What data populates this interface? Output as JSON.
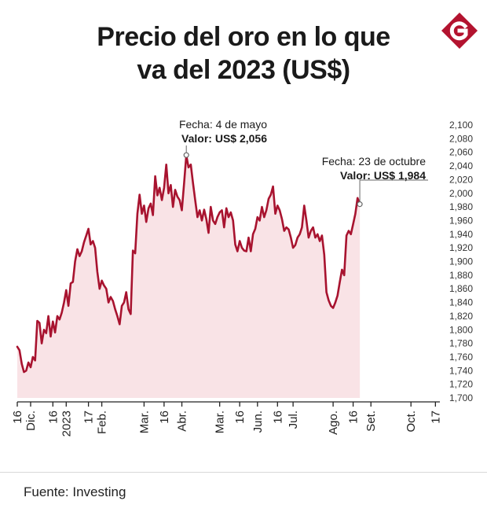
{
  "chart_data": {
    "type": "area",
    "title_lines": [
      "Precio del oro en lo que",
      "va del 2023 (US$)"
    ],
    "source": "Fuente: Investing",
    "line_color": "#a8132f",
    "fill_color": "#f9e3e6",
    "ylim": [
      1700,
      2100
    ],
    "yticks": [
      "1,700",
      "1,720",
      "1,740",
      "1,760",
      "1,780",
      "1,800",
      "1,820",
      "1,840",
      "1,860",
      "1,880",
      "1,900",
      "1,920",
      "1,940",
      "1,960",
      "1,980",
      "2,000",
      "2,020",
      "2,040",
      "2,060",
      "2,080",
      "2,100"
    ],
    "xticks": [
      {
        "label": "16",
        "t": 0
      },
      {
        "label": "Dic.",
        "t": 6
      },
      {
        "label": "16",
        "t": 16
      },
      {
        "label": "2023",
        "t": 22
      },
      {
        "label": "17",
        "t": 32
      },
      {
        "label": "Feb.",
        "t": 38
      },
      {
        "label": "Mar.",
        "t": 57
      },
      {
        "label": "16",
        "t": 66
      },
      {
        "label": "Abr.",
        "t": 74
      },
      {
        "label": "Mar.",
        "t": 91
      },
      {
        "label": "16",
        "t": 100
      },
      {
        "label": "Jun.",
        "t": 108
      },
      {
        "label": "16",
        "t": 117
      },
      {
        "label": "Jul.",
        "t": 124
      },
      {
        "label": "Ago.",
        "t": 142
      },
      {
        "label": "16",
        "t": 151
      },
      {
        "label": "Set.",
        "t": 159
      },
      {
        "label": "Oct.",
        "t": 177
      },
      {
        "label": "17",
        "t": 188
      }
    ],
    "x_max": 190,
    "series": [
      {
        "values": [
          [
            0,
            1775
          ],
          [
            1,
            1770
          ],
          [
            2,
            1750
          ],
          [
            3,
            1738
          ],
          [
            4,
            1740
          ],
          [
            5,
            1752
          ],
          [
            6,
            1745
          ],
          [
            7,
            1760
          ],
          [
            8,
            1755
          ],
          [
            9,
            1813
          ],
          [
            10,
            1810
          ],
          [
            11,
            1780
          ],
          [
            12,
            1800
          ],
          [
            13,
            1795
          ],
          [
            14,
            1820
          ],
          [
            15,
            1790
          ],
          [
            16,
            1812
          ],
          [
            17,
            1796
          ],
          [
            18,
            1820
          ],
          [
            19,
            1815
          ],
          [
            20,
            1825
          ],
          [
            21,
            1840
          ],
          [
            22,
            1858
          ],
          [
            23,
            1835
          ],
          [
            24,
            1868
          ],
          [
            25,
            1870
          ],
          [
            26,
            1900
          ],
          [
            27,
            1918
          ],
          [
            28,
            1908
          ],
          [
            29,
            1915
          ],
          [
            30,
            1928
          ],
          [
            31,
            1938
          ],
          [
            32,
            1948
          ],
          [
            33,
            1925
          ],
          [
            34,
            1930
          ],
          [
            35,
            1920
          ],
          [
            36,
            1885
          ],
          [
            37,
            1860
          ],
          [
            38,
            1872
          ],
          [
            39,
            1865
          ],
          [
            40,
            1860
          ],
          [
            41,
            1840
          ],
          [
            42,
            1848
          ],
          [
            43,
            1842
          ],
          [
            44,
            1830
          ],
          [
            45,
            1820
          ],
          [
            46,
            1808
          ],
          [
            47,
            1835
          ],
          [
            48,
            1840
          ],
          [
            49,
            1855
          ],
          [
            50,
            1830
          ],
          [
            51,
            1823
          ],
          [
            52,
            1916
          ],
          [
            53,
            1912
          ],
          [
            54,
            1970
          ],
          [
            55,
            1998
          ],
          [
            56,
            1970
          ],
          [
            57,
            1982
          ],
          [
            58,
            1958
          ],
          [
            59,
            1978
          ],
          [
            60,
            1985
          ],
          [
            61,
            1968
          ],
          [
            62,
            2025
          ],
          [
            63,
            1997
          ],
          [
            64,
            2008
          ],
          [
            65,
            1990
          ],
          [
            66,
            2008
          ],
          [
            67,
            2042
          ],
          [
            68,
            2000
          ],
          [
            69,
            2012
          ],
          [
            70,
            1980
          ],
          [
            71,
            2005
          ],
          [
            72,
            1995
          ],
          [
            73,
            1990
          ],
          [
            74,
            1975
          ],
          [
            75,
            2015
          ],
          [
            76,
            2056
          ],
          [
            77,
            2038
          ],
          [
            78,
            2042
          ],
          [
            79,
            2015
          ],
          [
            80,
            1990
          ],
          [
            81,
            1965
          ],
          [
            82,
            1975
          ],
          [
            83,
            1960
          ],
          [
            84,
            1976
          ],
          [
            85,
            1962
          ],
          [
            86,
            1942
          ],
          [
            87,
            1980
          ],
          [
            88,
            1960
          ],
          [
            89,
            1955
          ],
          [
            90,
            1965
          ],
          [
            91,
            1972
          ],
          [
            92,
            1975
          ],
          [
            93,
            1950
          ],
          [
            94,
            1978
          ],
          [
            95,
            1965
          ],
          [
            96,
            1972
          ],
          [
            97,
            1960
          ],
          [
            98,
            1925
          ],
          [
            99,
            1915
          ],
          [
            100,
            1930
          ],
          [
            101,
            1920
          ],
          [
            102,
            1916
          ],
          [
            103,
            1915
          ],
          [
            104,
            1935
          ],
          [
            105,
            1915
          ],
          [
            106,
            1940
          ],
          [
            107,
            1948
          ],
          [
            108,
            1965
          ],
          [
            109,
            1960
          ],
          [
            110,
            1980
          ],
          [
            111,
            1965
          ],
          [
            112,
            1975
          ],
          [
            113,
            1992
          ],
          [
            114,
            1998
          ],
          [
            115,
            2010
          ],
          [
            116,
            1970
          ],
          [
            117,
            1982
          ],
          [
            118,
            1975
          ],
          [
            119,
            1962
          ],
          [
            120,
            1945
          ],
          [
            121,
            1950
          ],
          [
            122,
            1947
          ],
          [
            123,
            1935
          ],
          [
            124,
            1920
          ],
          [
            125,
            1924
          ],
          [
            126,
            1935
          ],
          [
            127,
            1940
          ],
          [
            128,
            1950
          ],
          [
            129,
            1982
          ],
          [
            130,
            1960
          ],
          [
            131,
            1935
          ],
          [
            132,
            1945
          ],
          [
            133,
            1950
          ],
          [
            134,
            1935
          ],
          [
            135,
            1940
          ],
          [
            136,
            1930
          ],
          [
            137,
            1938
          ],
          [
            138,
            1910
          ],
          [
            139,
            1855
          ],
          [
            140,
            1843
          ],
          [
            141,
            1835
          ],
          [
            142,
            1832
          ],
          [
            143,
            1840
          ],
          [
            144,
            1850
          ],
          [
            145,
            1870
          ],
          [
            146,
            1888
          ],
          [
            147,
            1880
          ],
          [
            148,
            1938
          ],
          [
            149,
            1945
          ],
          [
            150,
            1940
          ],
          [
            151,
            1955
          ],
          [
            152,
            1970
          ],
          [
            153,
            1993
          ],
          [
            154,
            1984
          ]
        ]
      }
    ],
    "annotations": [
      {
        "t": 76,
        "value": 2056,
        "date_text": "Fecha: 4 de mayo",
        "value_label": "Valor:",
        "value_text": "US$ 2,056"
      },
      {
        "t": 154,
        "value": 1984,
        "date_text": "Fecha: 23 de octubre",
        "value_label": "Valor:",
        "value_text": "US$ 1,984"
      }
    ]
  }
}
